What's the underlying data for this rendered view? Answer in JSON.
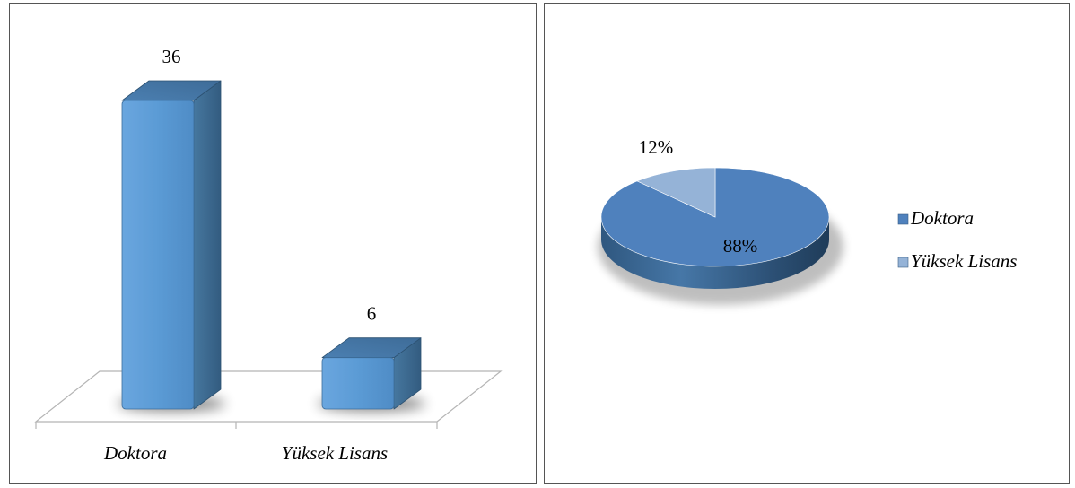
{
  "chart_data": [
    {
      "type": "bar",
      "title": "",
      "xlabel": "",
      "ylabel": "",
      "categories": [
        "Doktora",
        "Yüksek Lisans"
      ],
      "values": [
        36,
        6
      ],
      "data_labels": [
        "36",
        "6"
      ],
      "ylim": [
        0,
        36
      ],
      "grid": false,
      "legend": "none",
      "style": "3d-column",
      "colors": {
        "front": "#5b9bd5",
        "side": "#3f6f9b",
        "top": "#4e86bd"
      }
    },
    {
      "type": "pie",
      "title": "",
      "labels": [
        "Doktora",
        "Yüksek Lisans"
      ],
      "values": [
        88,
        12
      ],
      "data_labels": [
        "88%",
        "12%"
      ],
      "legend": "right",
      "style": "3d-pie",
      "colors": [
        "#4f81bd",
        "#95b3d7"
      ]
    }
  ]
}
